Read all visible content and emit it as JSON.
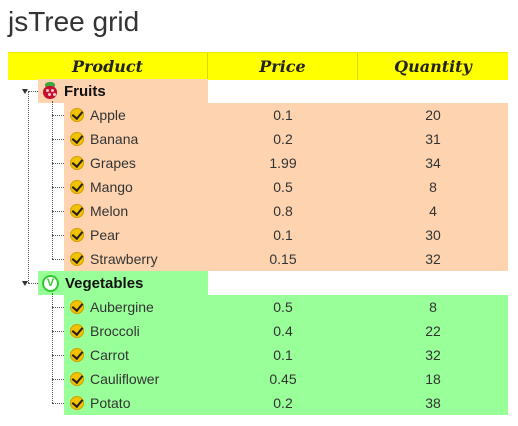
{
  "title": "jsTree grid",
  "columns": {
    "product": "Product",
    "price": "Price",
    "quantity": "Quantity"
  },
  "colors": {
    "header": "#ffff00",
    "fruits": "#fed4b0",
    "vegetables": "#99ff99"
  },
  "categories": [
    {
      "name": "Fruits",
      "icon": "raspberry-icon",
      "items": [
        {
          "name": "Apple",
          "price": "0.1",
          "quantity": "20"
        },
        {
          "name": "Banana",
          "price": "0.2",
          "quantity": "31"
        },
        {
          "name": "Grapes",
          "price": "1.99",
          "quantity": "34"
        },
        {
          "name": "Mango",
          "price": "0.5",
          "quantity": "8"
        },
        {
          "name": "Melon",
          "price": "0.8",
          "quantity": "4"
        },
        {
          "name": "Pear",
          "price": "0.1",
          "quantity": "30"
        },
        {
          "name": "Strawberry",
          "price": "0.15",
          "quantity": "32"
        }
      ]
    },
    {
      "name": "Vegetables",
      "icon": "vegetable-v-icon",
      "icon_letter": "V",
      "items": [
        {
          "name": "Aubergine",
          "price": "0.5",
          "quantity": "8"
        },
        {
          "name": "Broccoli",
          "price": "0.4",
          "quantity": "22"
        },
        {
          "name": "Carrot",
          "price": "0.1",
          "quantity": "32"
        },
        {
          "name": "Cauliflower",
          "price": "0.45",
          "quantity": "18"
        },
        {
          "name": "Potato",
          "price": "0.2",
          "quantity": "38"
        }
      ]
    }
  ]
}
